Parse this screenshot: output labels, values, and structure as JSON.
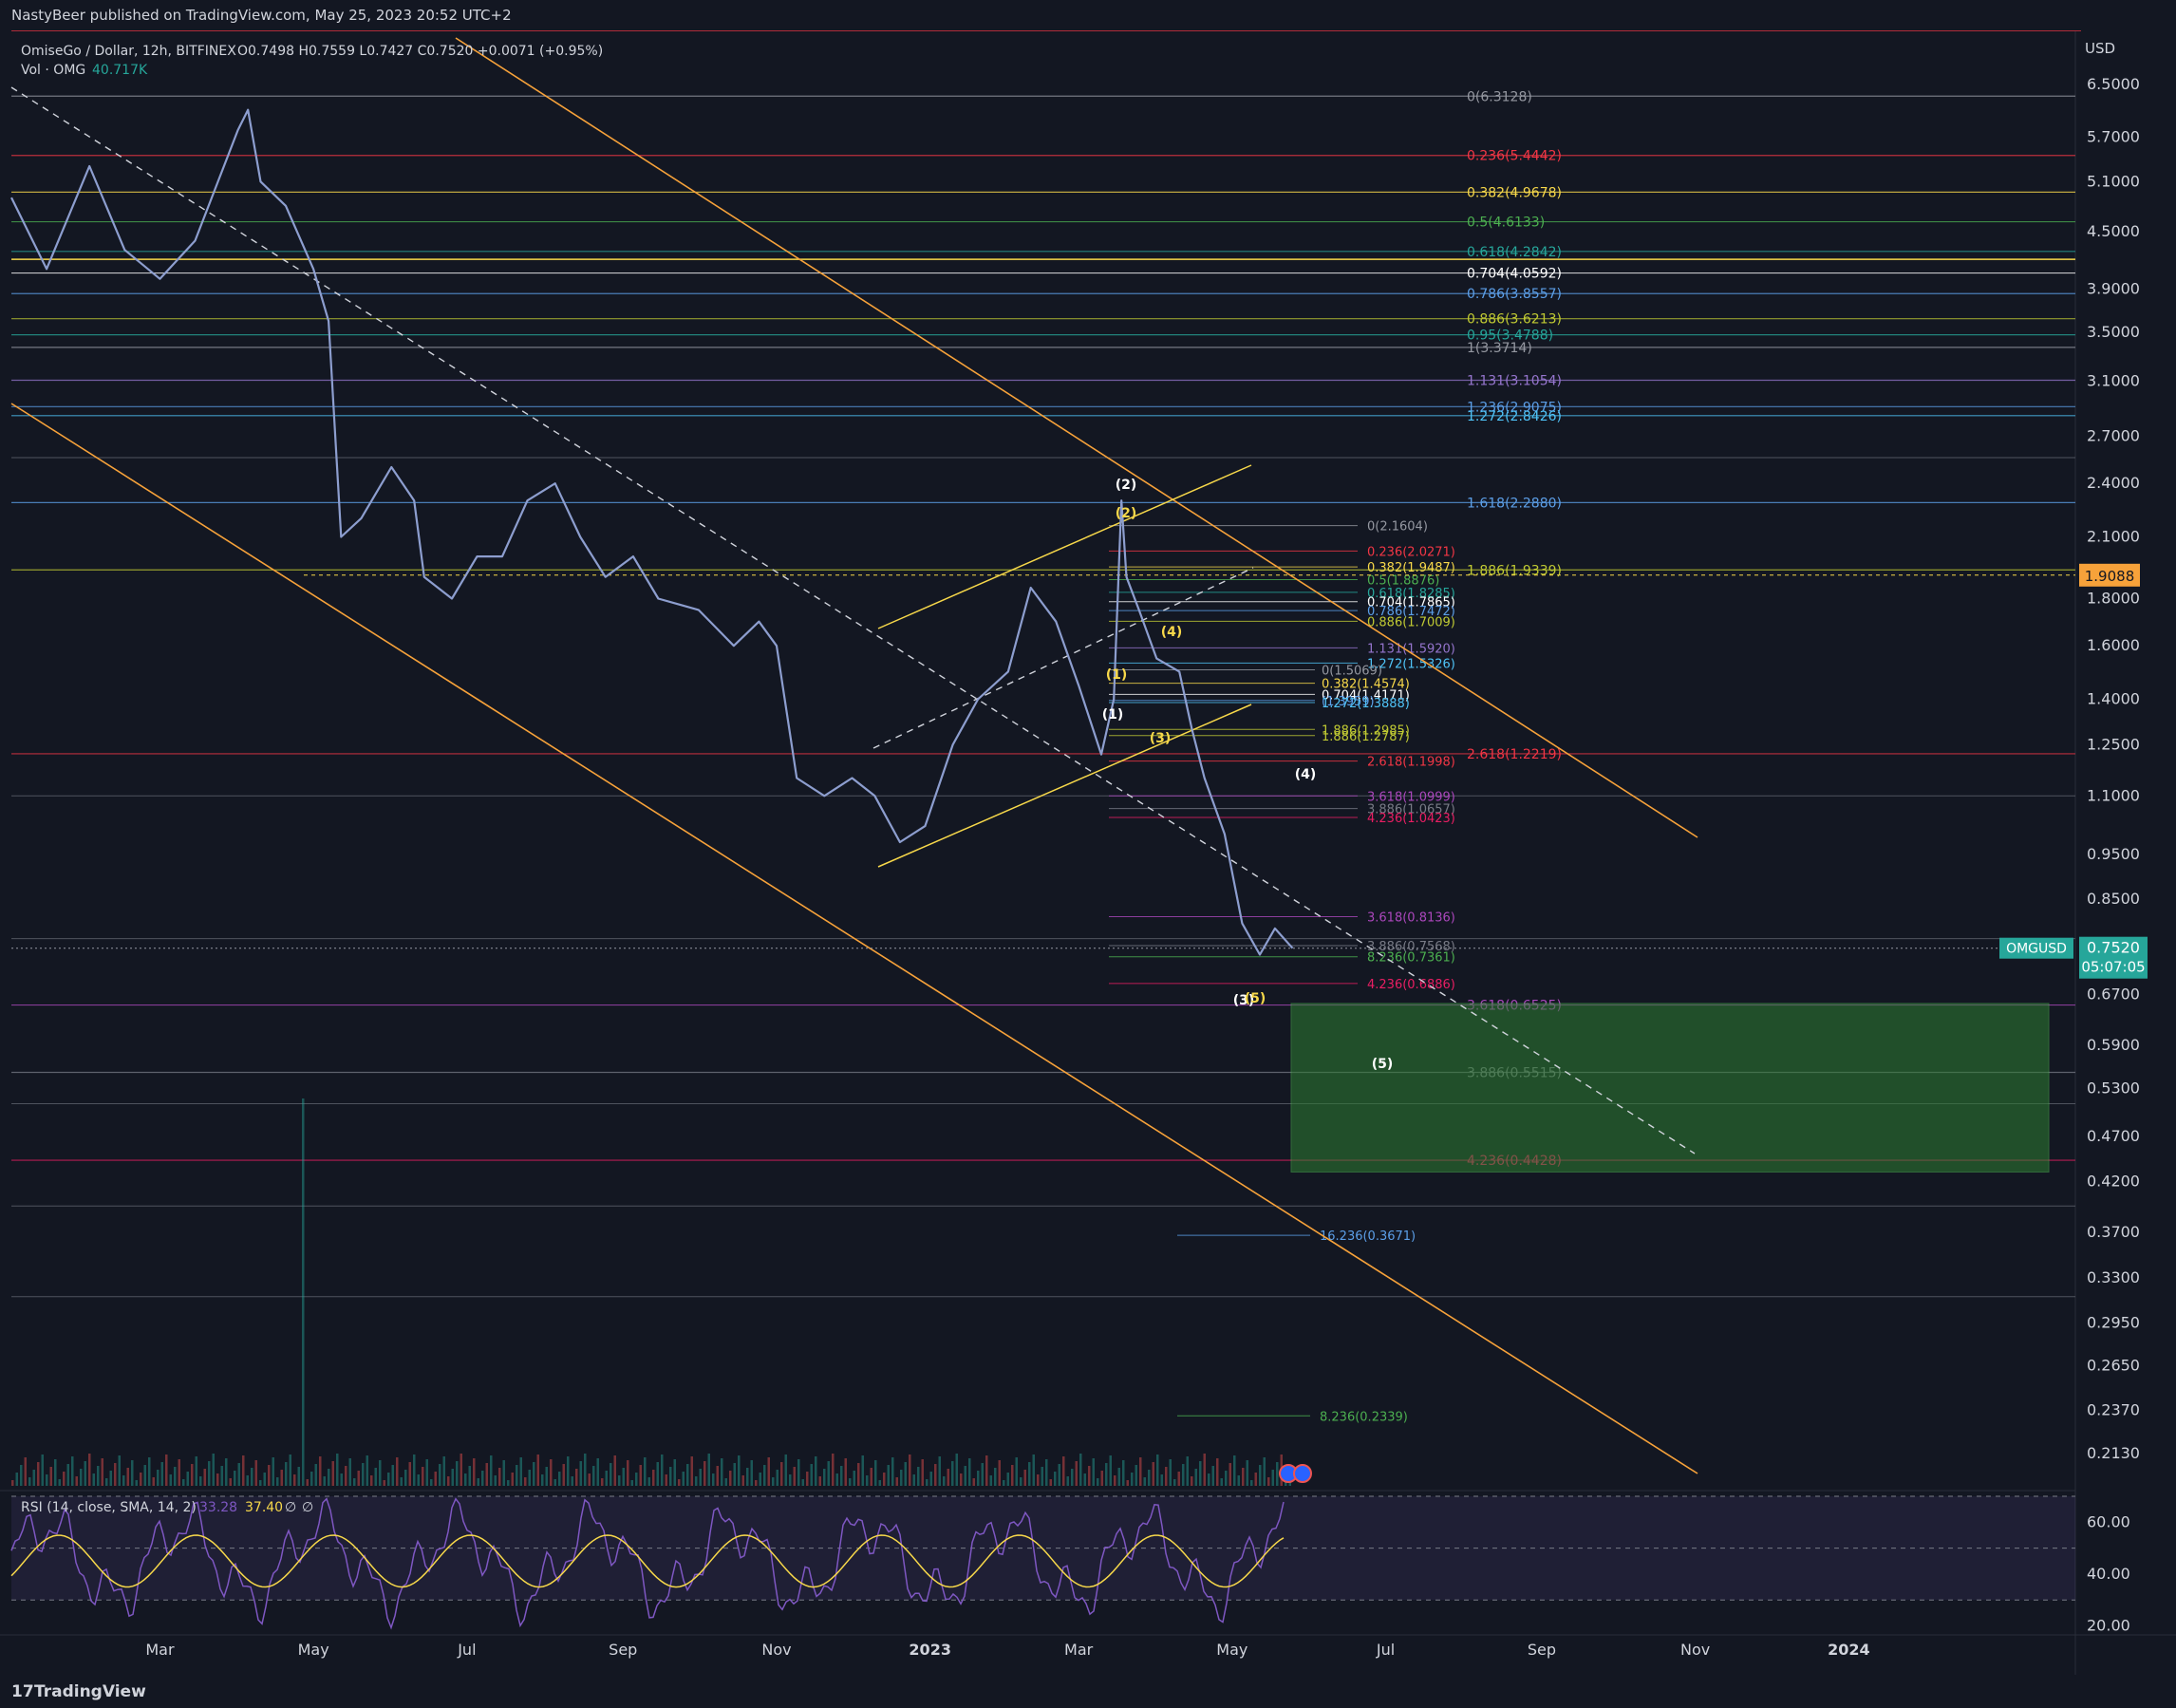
{
  "publisher": "NastyBeer published on TradingView.com, May 25, 2023 20:52 UTC+2",
  "footer_brand": "TradingView",
  "colors": {
    "background": "#131722",
    "candle": "#8d9ecf",
    "orange": "#f7a23a",
    "white_dashed": "#d1d4dc",
    "green_box": "#2e7d32",
    "rsi": "#7e57c2",
    "rsi_sma": "#f7d84a",
    "price_badge": "#26a69a"
  },
  "chart_data": {
    "type": "line",
    "title": "OmiseGo / Dollar, 12h, BITFINEX",
    "ohlc": {
      "open": "O0.7498",
      "high": "H0.7559",
      "low": "L0.7427",
      "close": "C0.7520",
      "change": "+0.0071 (+0.95%)"
    },
    "volume_label": "Vol · OMG",
    "volume_value": "40.717K",
    "currency": "USD",
    "scale": "log",
    "ylim": [
      0.195,
      7.3
    ],
    "y_ticks": [
      "6.5000",
      "5.7000",
      "5.1000",
      "4.5000",
      "3.9000",
      "3.5000",
      "3.1000",
      "2.7000",
      "2.4000",
      "2.1000",
      "1.8000",
      "1.6000",
      "1.4000",
      "1.2500",
      "1.1000",
      "0.9500",
      "0.8500",
      "0.6700",
      "0.5900",
      "0.5300",
      "0.4700",
      "0.4200",
      "0.3700",
      "0.3300",
      "0.2950",
      "0.2650",
      "0.2370",
      "0.2130"
    ],
    "x_ticks": [
      "Mar",
      "May",
      "Jul",
      "Sep",
      "Nov",
      "2023",
      "Mar",
      "May",
      "Jul",
      "Sep",
      "Nov",
      "2024"
    ],
    "x_range": [
      "2022-01-01",
      "2024-03-31"
    ],
    "price_path": [
      [
        "2022-01-01",
        4.9
      ],
      [
        "2022-01-15",
        4.1
      ],
      [
        "2022-02-01",
        5.3
      ],
      [
        "2022-02-15",
        4.3
      ],
      [
        "2022-03-01",
        4.0
      ],
      [
        "2022-03-15",
        4.4
      ],
      [
        "2022-04-01",
        5.8
      ],
      [
        "2022-04-05",
        6.1
      ],
      [
        "2022-04-10",
        5.1
      ],
      [
        "2022-04-20",
        4.8
      ],
      [
        "2022-05-01",
        4.1
      ],
      [
        "2022-05-07",
        3.6
      ],
      [
        "2022-05-12",
        2.1
      ],
      [
        "2022-05-20",
        2.2
      ],
      [
        "2022-06-01",
        2.5
      ],
      [
        "2022-06-10",
        2.3
      ],
      [
        "2022-06-14",
        1.9
      ],
      [
        "2022-06-25",
        1.8
      ],
      [
        "2022-07-05",
        2.0
      ],
      [
        "2022-07-15",
        2.0
      ],
      [
        "2022-07-25",
        2.3
      ],
      [
        "2022-08-05",
        2.4
      ],
      [
        "2022-08-15",
        2.1
      ],
      [
        "2022-08-25",
        1.9
      ],
      [
        "2022-09-05",
        2.0
      ],
      [
        "2022-09-15",
        1.8
      ],
      [
        "2022-10-01",
        1.75
      ],
      [
        "2022-10-15",
        1.6
      ],
      [
        "2022-10-25",
        1.7
      ],
      [
        "2022-11-01",
        1.6
      ],
      [
        "2022-11-09",
        1.15
      ],
      [
        "2022-11-20",
        1.1
      ],
      [
        "2022-12-01",
        1.15
      ],
      [
        "2022-12-10",
        1.1
      ],
      [
        "2022-12-20",
        0.98
      ],
      [
        "2022-12-30",
        1.02
      ],
      [
        "2023-01-10",
        1.25
      ],
      [
        "2023-01-20",
        1.4
      ],
      [
        "2023-02-01",
        1.5
      ],
      [
        "2023-02-10",
        1.85
      ],
      [
        "2023-02-20",
        1.7
      ],
      [
        "2023-03-01",
        1.45
      ],
      [
        "2023-03-10",
        1.22
      ],
      [
        "2023-03-15",
        1.4
      ],
      [
        "2023-03-18",
        2.3
      ],
      [
        "2023-03-20",
        1.9
      ],
      [
        "2023-03-25",
        1.75
      ],
      [
        "2023-04-01",
        1.55
      ],
      [
        "2023-04-10",
        1.5
      ],
      [
        "2023-04-15",
        1.3
      ],
      [
        "2023-04-20",
        1.15
      ],
      [
        "2023-04-28",
        1.0
      ],
      [
        "2023-05-05",
        0.8
      ],
      [
        "2023-05-12",
        0.74
      ],
      [
        "2023-05-18",
        0.79
      ],
      [
        "2023-05-25",
        0.752
      ]
    ],
    "last_price": "0.7520",
    "countdown": "05:07:05",
    "symbol_badge": "OMGUSD",
    "alert_price": "1.9088",
    "fib_levels_main": [
      {
        "label": "0(6.3128)",
        "color": "#9598a1"
      },
      {
        "label": "0.236(5.4442)",
        "color": "#f23645"
      },
      {
        "label": "0.382(4.9678)",
        "color": "#f7d84a"
      },
      {
        "label": "0.5(4.6133)",
        "color": "#4caf50"
      },
      {
        "label": "0.618(4.2842)",
        "color": "#26a69a"
      },
      {
        "label": "0.704(4.0592)",
        "color": "#ffffff"
      },
      {
        "label": "0.786(3.8557)",
        "color": "#5c9fe8"
      },
      {
        "label": "0.886(3.6213)",
        "color": "#c0ca33"
      },
      {
        "label": "0.95(3.4788)",
        "color": "#26a69a"
      },
      {
        "label": "1(3.3714)",
        "color": "#9598a1"
      },
      {
        "label": "1.131(3.1054)",
        "color": "#9575cd"
      },
      {
        "label": "1.236(2.9075)",
        "color": "#5c9fe8"
      },
      {
        "label": "1.272(2.8426)",
        "color": "#4fc3f7"
      },
      {
        "label": "1.618(2.2880)",
        "color": "#5c9fe8"
      },
      {
        "label": "1.886(1.9339)",
        "color": "#c0ca33"
      },
      {
        "label": "2.618(1.2219)",
        "color": "#f23645"
      },
      {
        "label": "3.618(0.6525)",
        "color": "#ab47bc"
      },
      {
        "label": "3.886(0.5515)",
        "color": "#787b86"
      },
      {
        "label": "4.236(0.4428)",
        "color": "#e91e63"
      }
    ],
    "fib_levels_secondary": [
      {
        "label": "0(2.1604)",
        "color": "#9598a1"
      },
      {
        "label": "0.236(2.0271)",
        "color": "#f23645"
      },
      {
        "label": "0.382(1.9487)",
        "color": "#f7d84a"
      },
      {
        "label": "0.5(1.8876)",
        "color": "#4caf50"
      },
      {
        "label": "0.618(1.8285)",
        "color": "#26a69a"
      },
      {
        "label": "0.704(1.7865)",
        "color": "#ffffff"
      },
      {
        "label": "0.786(1.7472)",
        "color": "#5c9fe8"
      },
      {
        "label": "0.886(1.7009)",
        "color": "#c0ca33"
      },
      {
        "label": "1.131(1.5920)",
        "color": "#9575cd"
      },
      {
        "label": "1.272(1.5326)",
        "color": "#4fc3f7"
      },
      {
        "label": "2.618(1.1998)",
        "color": "#f23645"
      },
      {
        "label": "3.618(1.0999)",
        "color": "#ab47bc"
      },
      {
        "label": "3.886(1.0657)",
        "color": "#787b86"
      },
      {
        "label": "4.236(1.0423)",
        "color": "#e91e63"
      },
      {
        "label": "3.618(0.8136)",
        "color": "#ab47bc"
      },
      {
        "label": "3.886(0.7568)",
        "color": "#787b86"
      },
      {
        "label": "4.236(0.6886)",
        "color": "#e91e63"
      },
      {
        "label": "8.236(0.7361)",
        "color": "#4caf50"
      },
      {
        "label": "16.236(0.3671)",
        "color": "#5c9fe8"
      },
      {
        "label": "8.236(0.2339)",
        "color": "#4caf50"
      }
    ],
    "fib_levels_small": [
      {
        "label": "0(1.5069)",
        "color": "#9598a1"
      },
      {
        "label": "0.382(1.4574)",
        "color": "#f7d84a"
      },
      {
        "label": "0.704(1.4171)",
        "color": "#ffffff"
      },
      {
        "label": "(1.3959)",
        "color": "#5c9fe8"
      },
      {
        "label": "1.272(1.3888)",
        "color": "#4fc3f7"
      },
      {
        "label": "1.886(1.2985)",
        "color": "#c0ca33"
      },
      {
        "label": "1.886(1.2787)",
        "color": "#c0ca33"
      }
    ],
    "wave_labels": [
      {
        "text": "(2)",
        "color": "#ffffff"
      },
      {
        "text": "(2)",
        "color": "#f7d84a"
      },
      {
        "text": "(4)",
        "color": "#f7d84a"
      },
      {
        "text": "(1)",
        "color": "#f7d84a"
      },
      {
        "text": "(1)",
        "color": "#ffffff"
      },
      {
        "text": "(3)",
        "color": "#f7d84a"
      },
      {
        "text": "(4)",
        "color": "#ffffff"
      },
      {
        "text": "(3)",
        "color": "#ffffff"
      },
      {
        "text": "(5)",
        "color": "#f7d84a"
      },
      {
        "text": "(5)",
        "color": "#ffffff"
      }
    ],
    "rsi": {
      "label": "RSI (14, close, SMA, 14, 2)",
      "value_a": "33.28",
      "value_b": "37.40",
      "value_c": "∅",
      "value_d": "∅",
      "y_ticks": [
        "60.00",
        "40.00",
        "20.00"
      ],
      "ylim": [
        18,
        70
      ],
      "band": [
        30,
        70
      ]
    }
  }
}
